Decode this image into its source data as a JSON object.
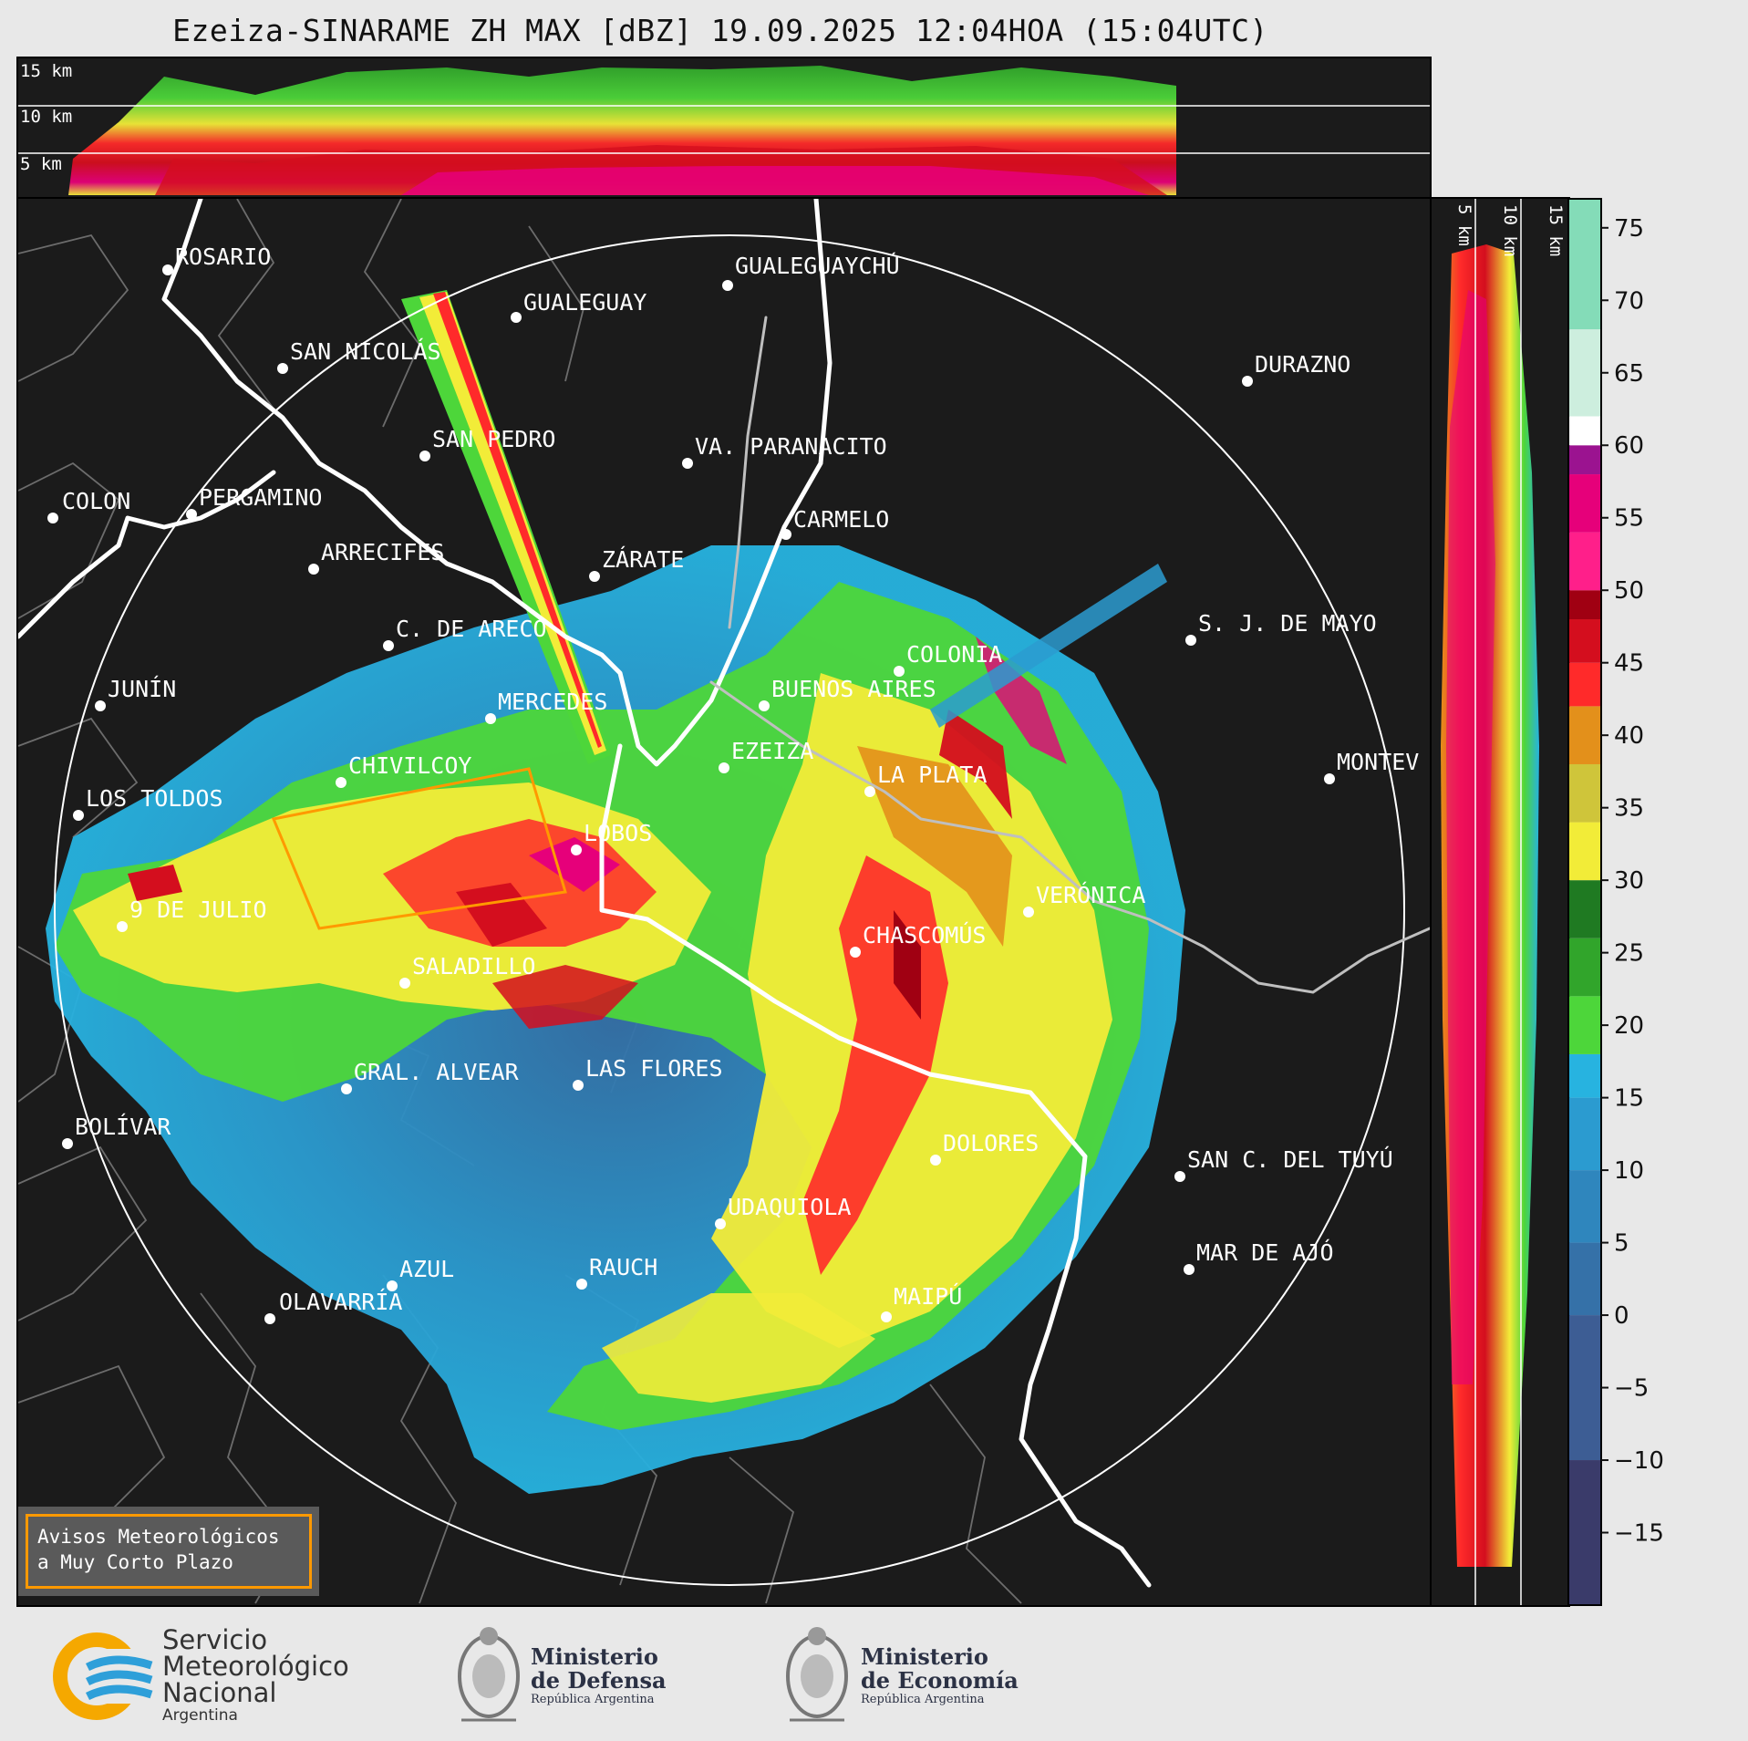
{
  "title": "Ezeiza-SINARAME ZH MAX [dBZ] 19.09.2025 12:04HOA (15:04UTC)",
  "top_panel_labels": [
    "15 km",
    "10 km",
    "5 km"
  ],
  "side_panel_labels": [
    "5 km",
    "10 km",
    "15 km"
  ],
  "colorbar": {
    "ticks": [
      "75",
      "70",
      "65",
      "60",
      "55",
      "50",
      "45",
      "40",
      "35",
      "30",
      "25",
      "20",
      "15",
      "10",
      "5",
      "0",
      "−5",
      "−10",
      "−15"
    ],
    "range": [
      -20,
      77
    ],
    "bands": [
      {
        "from": -20,
        "to": -10,
        "color": "#3a3b6a"
      },
      {
        "from": -10,
        "to": 0,
        "color": "#3d5d94"
      },
      {
        "from": 0,
        "to": 5,
        "color": "#3571a8"
      },
      {
        "from": 5,
        "to": 10,
        "color": "#2f86bd"
      },
      {
        "from": 10,
        "to": 15,
        "color": "#2b9bd0"
      },
      {
        "from": 15,
        "to": 18,
        "color": "#27b3e0"
      },
      {
        "from": 18,
        "to": 22,
        "color": "#4dd63a"
      },
      {
        "from": 22,
        "to": 26,
        "color": "#31a52b"
      },
      {
        "from": 26,
        "to": 30,
        "color": "#1f7a22"
      },
      {
        "from": 30,
        "to": 34,
        "color": "#f2ec38"
      },
      {
        "from": 34,
        "to": 38,
        "color": "#cfc53a"
      },
      {
        "from": 38,
        "to": 42,
        "color": "#e3901b"
      },
      {
        "from": 42,
        "to": 45,
        "color": "#ff2a2a"
      },
      {
        "from": 45,
        "to": 48,
        "color": "#d40e1e"
      },
      {
        "from": 48,
        "to": 50,
        "color": "#a00012"
      },
      {
        "from": 50,
        "to": 54,
        "color": "#ff1f8a"
      },
      {
        "from": 54,
        "to": 58,
        "color": "#e6007a"
      },
      {
        "from": 58,
        "to": 60,
        "color": "#9b1390"
      },
      {
        "from": 60,
        "to": 62,
        "color": "#ffffff"
      },
      {
        "from": 62,
        "to": 68,
        "color": "#cdeede"
      },
      {
        "from": 68,
        "to": 77,
        "color": "#84dcb8"
      }
    ]
  },
  "cities": [
    {
      "name": "ROSARIO"
    },
    {
      "name": "GUALEGUAYCHÚ"
    },
    {
      "name": "GUALEGUAY"
    },
    {
      "name": "SAN NICOLÁS"
    },
    {
      "name": "DURAZNO"
    },
    {
      "name": "SAN PEDRO"
    },
    {
      "name": "VA. PARANACITO"
    },
    {
      "name": "COLON"
    },
    {
      "name": "PERGAMINO"
    },
    {
      "name": "CARMELO"
    },
    {
      "name": "ARRECIFES"
    },
    {
      "name": "ZÁRATE"
    },
    {
      "name": "S. J. DE MAYO"
    },
    {
      "name": "C. DE ARECO"
    },
    {
      "name": "COLONIA"
    },
    {
      "name": "JUNÍN"
    },
    {
      "name": "BUENOS AIRES"
    },
    {
      "name": "MERCEDES"
    },
    {
      "name": "EZEIZA"
    },
    {
      "name": "MONTEV"
    },
    {
      "name": "CHIVILCOY"
    },
    {
      "name": "LA PLATA"
    },
    {
      "name": "LOS TOLDOS"
    },
    {
      "name": "LOBOS"
    },
    {
      "name": "VERÓNICA"
    },
    {
      "name": "9 DE JULIO"
    },
    {
      "name": "CHASCOMÚS"
    },
    {
      "name": "SALADILLO"
    },
    {
      "name": "GRAL. ALVEAR"
    },
    {
      "name": "LAS FLORES"
    },
    {
      "name": "BOLÍVAR"
    },
    {
      "name": "DOLORES"
    },
    {
      "name": "SAN C. DEL TUYÚ"
    },
    {
      "name": "UDAQUIOLA"
    },
    {
      "name": "MAR DE AJÓ"
    },
    {
      "name": "RAUCH"
    },
    {
      "name": "AZUL"
    },
    {
      "name": "OLAVARRÍA"
    },
    {
      "name": "MAIPÚ"
    }
  ],
  "warning_legend": {
    "line1": "Avisos Meteorológicos",
    "line2": "a Muy Corto Plazo",
    "color": "#ff9900"
  },
  "logos": {
    "smn_line1": "Servicio",
    "smn_line2": "Meteorológico",
    "smn_line3": "Nacional",
    "smn_line4": "Argentina",
    "defensa_line1": "Ministerio",
    "defensa_line2": "de Defensa",
    "defensa_line3": "República Argentina",
    "economia_line1": "Ministerio",
    "economia_line2": "de Economía",
    "economia_line3": "República Argentina"
  }
}
